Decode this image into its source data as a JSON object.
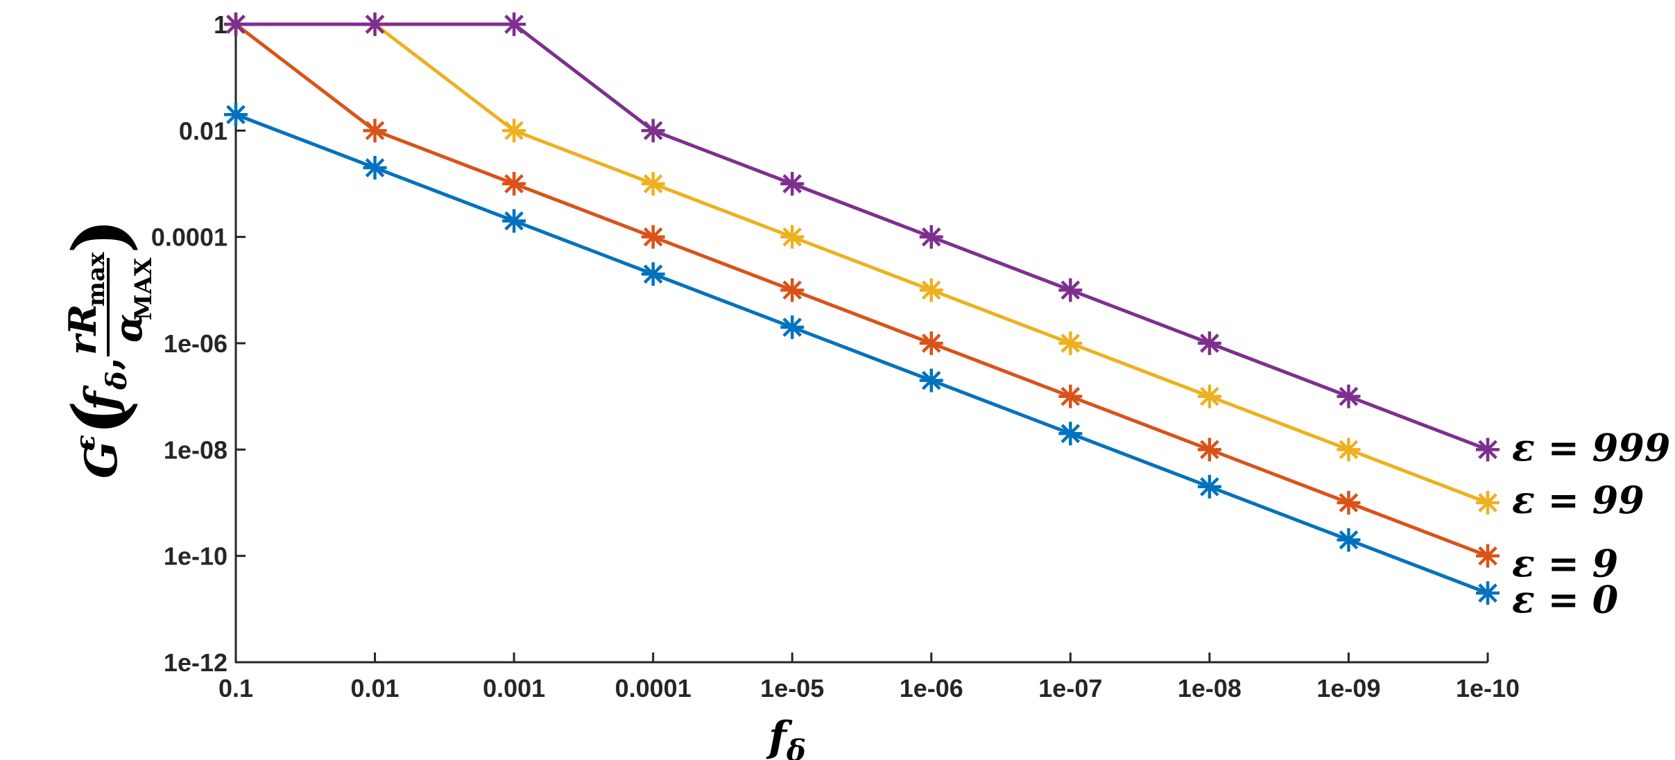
{
  "chart_data": {
    "type": "line",
    "x_scale": "log",
    "x_reversed": true,
    "y_scale": "log",
    "x": [
      0.1,
      0.01,
      0.001,
      0.0001,
      1e-05,
      1e-06,
      1e-07,
      1e-08,
      1e-09,
      1e-10
    ],
    "x_tick_labels": [
      "0.1",
      "0.01",
      "0.001",
      "0.0001",
      "1e-05",
      "1e-06",
      "1e-07",
      "1e-08",
      "1e-09",
      "1e-10"
    ],
    "y_ticks": [
      1e-12,
      1e-10,
      1e-08,
      1e-06,
      0.0001,
      0.01,
      1
    ],
    "y_tick_labels": [
      "1e-12",
      "1e-10",
      "1e-08",
      "1e-06",
      "0.0001",
      "0.01",
      "1"
    ],
    "ylim": [
      1e-12,
      1
    ],
    "xlabel": {
      "main": "f",
      "sub": "δ"
    },
    "ylabel": {
      "G": "G",
      "sup": "ε",
      "f": "f",
      "fsub": "δ",
      "numer": "rR",
      "numer_sub": "max",
      "denom": "α",
      "denom_sub": "MAX"
    },
    "grid": false,
    "series": [
      {
        "name": "ε = 0",
        "color": "#0072BD",
        "values": [
          0.02,
          0.002,
          0.0002,
          2e-05,
          2e-06,
          2e-07,
          2e-08,
          2e-09,
          2e-10,
          2e-11
        ]
      },
      {
        "name": "ε = 9",
        "color": "#D95319",
        "values": [
          1,
          0.01,
          0.001,
          0.0001,
          1e-05,
          1e-06,
          1e-07,
          1e-08,
          1e-09,
          1e-10
        ]
      },
      {
        "name": "ε = 99",
        "color": "#EDB120",
        "values": [
          1,
          1,
          0.01,
          0.001,
          0.0001,
          1e-05,
          1e-06,
          1e-07,
          1e-08,
          1e-09
        ]
      },
      {
        "name": "ε = 999",
        "color": "#7E2F8E",
        "values": [
          1,
          1,
          1,
          0.01,
          0.001,
          0.0001,
          1e-05,
          1e-06,
          1e-07,
          1e-08
        ]
      }
    ]
  }
}
